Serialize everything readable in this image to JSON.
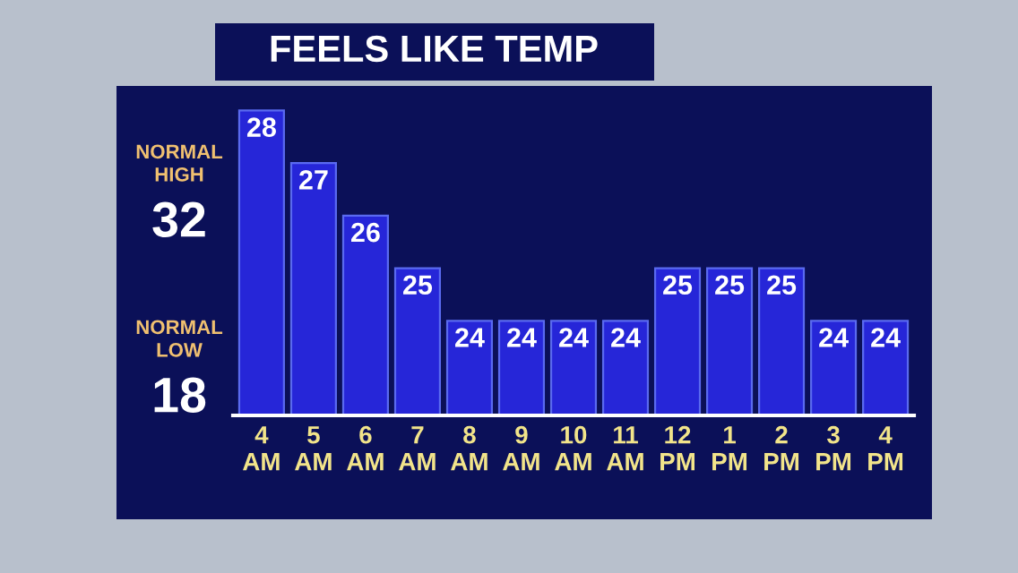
{
  "chart_data": {
    "type": "bar",
    "title": "FEELS LIKE TEMP",
    "categories": [
      "4\nAM",
      "5\nAM",
      "6\nAM",
      "7\nAM",
      "8\nAM",
      "9\nAM",
      "10\nAM",
      "11\nAM",
      "12\nPM",
      "1\nPM",
      "2\nPM",
      "3\nPM",
      "4\nPM"
    ],
    "values": [
      28,
      27,
      26,
      25,
      24,
      24,
      24,
      24,
      25,
      25,
      25,
      24,
      24
    ],
    "color": "#2626d8",
    "ylim": [
      22.2,
      28.4
    ],
    "data_labels": true,
    "tick_labels": "x",
    "grid": false,
    "annotations": [
      "NORMAL\nHIGH",
      "32",
      "NORMAL\nLOW",
      "18"
    ]
  }
}
